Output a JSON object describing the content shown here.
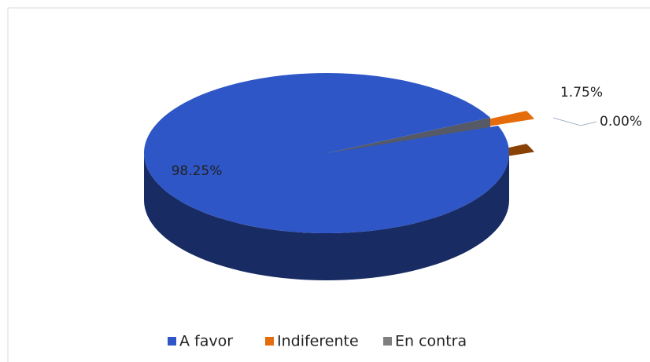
{
  "chart_data": {
    "type": "pie",
    "categories": [
      "A favor",
      "Indiferente",
      "En contra"
    ],
    "values": [
      98.25,
      1.75,
      0.0
    ],
    "value_labels": [
      "98.25%",
      "1.75%",
      "0.00%"
    ],
    "colors": [
      "#2f56c6",
      "#e46c0a",
      "#7f7f7f"
    ],
    "legend": "bottom"
  }
}
